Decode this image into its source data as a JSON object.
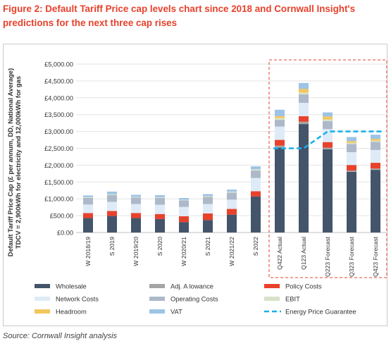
{
  "header": {
    "title": "Figure 2: Default Tariff Price cap levels chart since 2018 and Cornwall Insight's predictions for the next three cap rises"
  },
  "source": "Source: Cornwall Insight analysis",
  "colors": {
    "Wholesale": "#44546a",
    "Adj. A lowance": "#a5a5a5",
    "Policy Costs": "#e8412c",
    "Network Costs": "#deebf7",
    "Operating Costs": "#adb9ca",
    "EBIT": "#d9e2c9",
    "Headroom": "#f2c75c",
    "VAT": "#9dc3e6",
    "Energy Price Guarantee": "#1ab0e8",
    "highlight_box": "#e8412c"
  },
  "chart_data": {
    "type": "bar",
    "stacked": true,
    "title": "",
    "ylabel": "Default Tariff Price Cap (£ per annum, DD, National Average) TDCV = 2,900kWh for electricity and 12,000kWh for gas",
    "ylim": [
      0,
      5000
    ],
    "ytick_step": 500,
    "ytick_labels": [
      "£0.00",
      "£500.00",
      "£1,000.00",
      "£1,500.00",
      "£2,000.00",
      "£2,500.00",
      "£3,000.00",
      "£3,500.00",
      "£4,000.00",
      "£4,500.00",
      "£5,000.00"
    ],
    "grid": true,
    "legend_position": "bottom",
    "categories": [
      "W 2018/19",
      "S 2019",
      "W 2019/20",
      "S 2020",
      "W 2020/21",
      "S 2021",
      "W 2021/22",
      "S 2022",
      "Q422 Actual",
      "Q123 Actual",
      "Q223 Forecast",
      "Q323 Forecast",
      "Q423 Forecast"
    ],
    "highlight_categories": [
      "Q422 Actual",
      "Q123 Actual",
      "Q223 Forecast",
      "Q323 Forecast",
      "Q423 Forecast"
    ],
    "series": [
      {
        "name": "Wholesale",
        "values": [
          430,
          490,
          430,
          400,
          310,
          370,
          530,
          1070,
          2520,
          3220,
          2470,
          1800,
          1860
        ]
      },
      {
        "name": "Adj. A lowance",
        "values": [
          0,
          0,
          0,
          0,
          0,
          0,
          0,
          0,
          60,
          70,
          50,
          40,
          40
        ]
      },
      {
        "name": "Policy Costs",
        "values": [
          145,
          150,
          150,
          150,
          175,
          195,
          170,
          155,
          170,
          165,
          165,
          165,
          170
        ]
      },
      {
        "name": "Network Costs",
        "values": [
          255,
          270,
          265,
          275,
          275,
          280,
          275,
          395,
          395,
          395,
          385,
          380,
          380
        ]
      },
      {
        "name": "Operating Costs",
        "values": [
          200,
          205,
          195,
          205,
          195,
          210,
          210,
          220,
          200,
          250,
          240,
          240,
          240
        ]
      },
      {
        "name": "EBIT",
        "values": [
          20,
          25,
          20,
          20,
          20,
          25,
          30,
          40,
          50,
          55,
          45,
          40,
          40
        ]
      },
      {
        "name": "Headroom",
        "values": [
          0,
          0,
          0,
          0,
          0,
          0,
          0,
          0,
          60,
          110,
          90,
          50,
          50
        ]
      },
      {
        "name": "VAT",
        "values": [
          50,
          75,
          60,
          60,
          50,
          60,
          60,
          85,
          190,
          175,
          120,
          120,
          125
        ]
      }
    ],
    "line_series": {
      "name": "Energy Price Guarantee",
      "style": "dashed",
      "categories": [
        "Q422 Actual",
        "Q123 Actual",
        "Q223 Forecast",
        "Q323 Forecast",
        "Q423 Forecast"
      ],
      "values": [
        2500,
        2500,
        3000,
        3000,
        3000
      ]
    },
    "legend": [
      "Wholesale",
      "Adj. A lowance",
      "Policy Costs",
      "Network Costs",
      "Operating Costs",
      "EBIT",
      "Headroom",
      "VAT",
      "Energy Price Guarantee"
    ]
  }
}
